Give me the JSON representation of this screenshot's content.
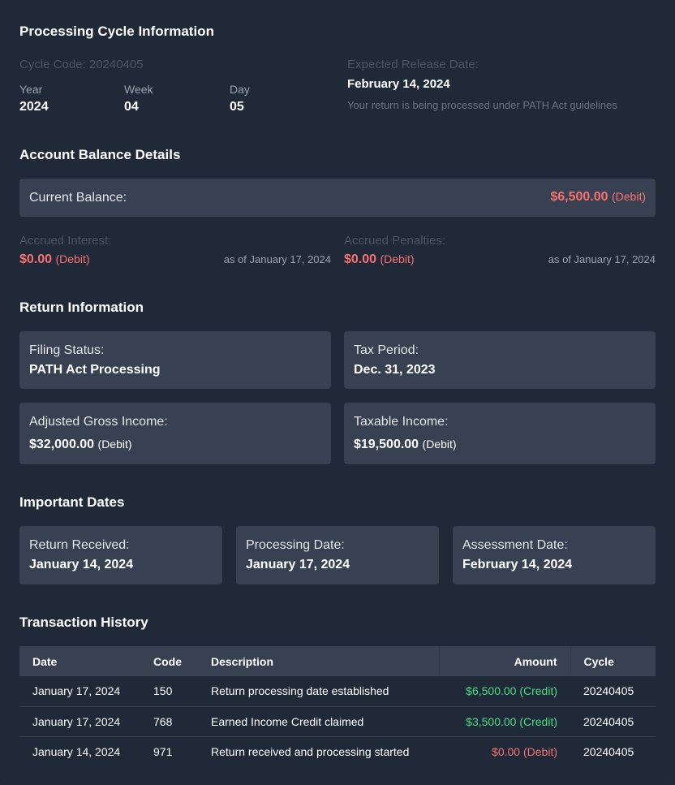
{
  "cycle": {
    "title": "Processing Cycle Information",
    "cycle_code": "Cycle Code: 20240405",
    "year_label": "Year",
    "year": "2024",
    "week_label": "Week",
    "week": "04",
    "day_label": "Day",
    "day": "05",
    "release_label": "Expected Release Date:",
    "release_date": "February 14, 2024",
    "note": "Your return is being processed under PATH Act guidelines"
  },
  "balance": {
    "title": "Account Balance Details",
    "current_label": "Current Balance:",
    "current_amount": "$6,500.00",
    "current_tag": "(Debit)",
    "interest_label": "Accrued Interest:",
    "interest_amount": "$0.00",
    "interest_tag": "(Debit)",
    "interest_asof": "as of January 17, 2024",
    "penalties_label": "Accrued Penalties:",
    "penalties_amount": "$0.00",
    "penalties_tag": "(Debit)",
    "penalties_asof": "as of January 17, 2024"
  },
  "return_info": {
    "title": "Return Information",
    "filing_label": "Filing Status:",
    "filing_value": "PATH Act Processing",
    "period_label": "Tax Period:",
    "period_value": "Dec. 31, 2023",
    "agi_label": "Adjusted Gross Income:",
    "agi_amount": "$32,000.00",
    "agi_tag": "(Debit)",
    "taxable_label": "Taxable Income:",
    "taxable_amount": "$19,500.00",
    "taxable_tag": "(Debit)"
  },
  "dates": {
    "title": "Important Dates",
    "items": [
      {
        "label": "Return Received:",
        "value": "January 14, 2024"
      },
      {
        "label": "Processing Date:",
        "value": "January 17, 2024"
      },
      {
        "label": "Assessment Date:",
        "value": "February 14, 2024"
      }
    ]
  },
  "transactions": {
    "title": "Transaction History",
    "headers": [
      "Date",
      "Code",
      "Description",
      "Amount",
      "Cycle"
    ],
    "rows": [
      {
        "date": "January 17, 2024",
        "code": "150",
        "description": "Return processing date established",
        "amount": "$6,500.00 (Credit)",
        "type": "credit",
        "cycle": "20240405"
      },
      {
        "date": "January 17, 2024",
        "code": "768",
        "description": "Earned Income Credit claimed",
        "amount": "$3,500.00 (Credit)",
        "type": "credit",
        "cycle": "20240405"
      },
      {
        "date": "January 14, 2024",
        "code": "971",
        "description": "Return received and processing started",
        "amount": "$0.00 (Debit)",
        "type": "debit",
        "cycle": "20240405"
      }
    ]
  },
  "colors": {
    "background": "#1f2937",
    "card": "#374151",
    "debit": "#f87171",
    "credit": "#4ade80"
  }
}
